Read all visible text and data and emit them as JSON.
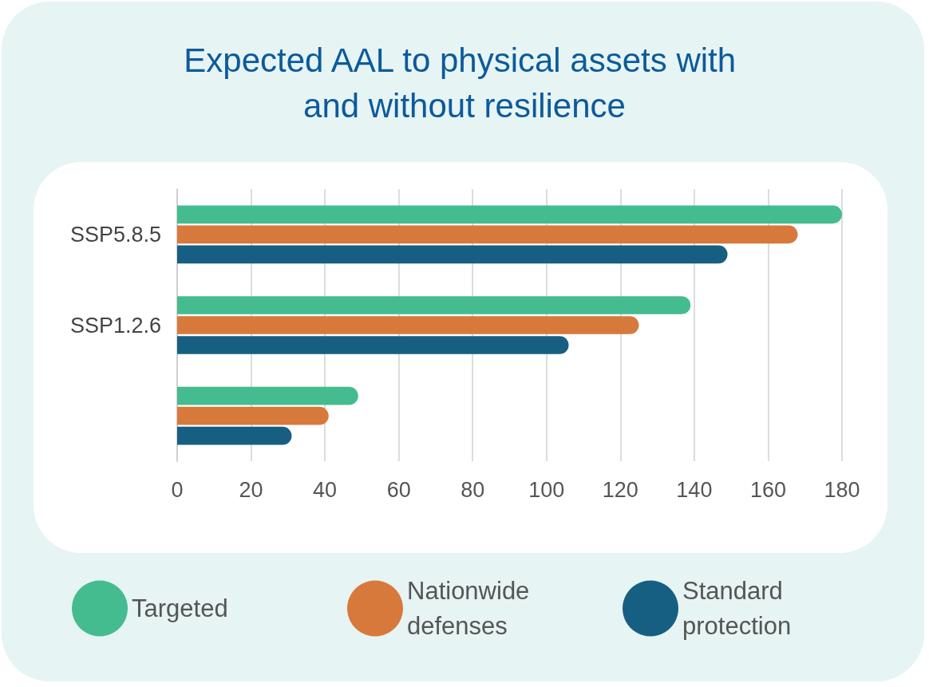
{
  "chart_data": {
    "type": "bar",
    "orientation": "horizontal",
    "title": "Expected AAL to physical assets with and without resilience",
    "categories": [
      "SSP5.8.5",
      "SSP1.2.6",
      null
    ],
    "series": [
      {
        "name": "Targeted",
        "color": "#44bc8f",
        "values": [
          180,
          139,
          49
        ]
      },
      {
        "name": "Nationwide defenses",
        "color": "#d8793c",
        "values": [
          168,
          125,
          41
        ]
      },
      {
        "name": "Standard protection",
        "color": "#175f82",
        "values": [
          149,
          106,
          31
        ]
      }
    ],
    "xlim": [
      0,
      180
    ],
    "xticks": [
      0,
      20,
      40,
      60,
      80,
      100,
      120,
      140,
      160,
      180
    ],
    "grid": "x",
    "legend": "bottom"
  }
}
